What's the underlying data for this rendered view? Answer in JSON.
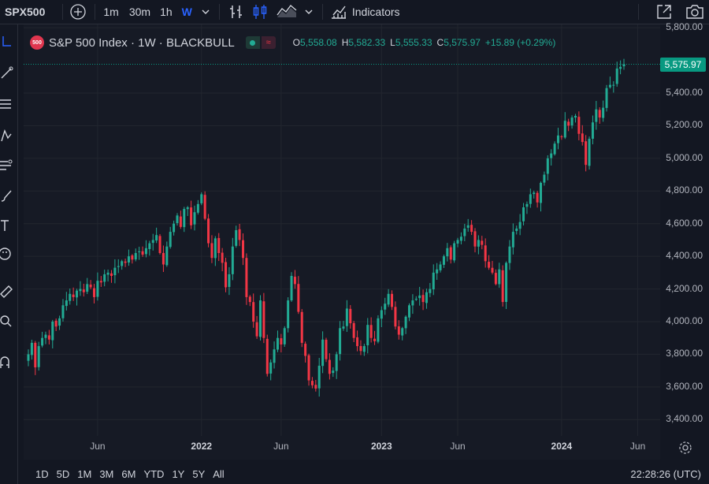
{
  "toolbar": {
    "symbol": "SPX500",
    "intervals": [
      "1m",
      "30m",
      "1h",
      "W"
    ],
    "active_interval": "W",
    "indicators_label": "Indicators"
  },
  "legend": {
    "badge": "500",
    "title": "S&P 500 Index · 1W · BLACKBULL",
    "open_key": "O",
    "open": "5,558.08",
    "high_key": "H",
    "high": "5,582.33",
    "low_key": "L",
    "low": "5,555.33",
    "close_key": "C",
    "close": "5,575.97",
    "change": "+15.89 (+0.29%)"
  },
  "colors": {
    "up": "#22ab94",
    "down": "#f23645",
    "accent": "#2962ff",
    "last_price_bg": "#089981"
  },
  "bottom": {
    "ranges": [
      "1D",
      "5D",
      "1M",
      "3M",
      "6M",
      "YTD",
      "1Y",
      "5Y",
      "All"
    ],
    "clock": "22:28:26 (UTC)"
  },
  "chart_data": {
    "type": "candlestick",
    "title": "S&P 500 Index · 1W · BLACKBULL",
    "ylim": [
      3300,
      5820
    ],
    "y_ticks": [
      3400,
      3600,
      3800,
      4000,
      4200,
      4400,
      4600,
      4800,
      5000,
      5200,
      5400,
      5800
    ],
    "y_tick_labels": [
      "3,400.00",
      "3,600.00",
      "3,800.00",
      "4,000.00",
      "4,200.00",
      "4,400.00",
      "4,600.00",
      "4,800.00",
      "5,000.00",
      "5,200.00",
      "5,400.00",
      "5,800.00"
    ],
    "last_price": 5575.97,
    "last_price_label": "5,575.97",
    "x_labels": [
      {
        "label": "Jun",
        "t": 20,
        "major": false
      },
      {
        "label": "2022",
        "t": 50,
        "major": true
      },
      {
        "label": "Jun",
        "t": 73,
        "major": false
      },
      {
        "label": "2023",
        "t": 102,
        "major": true
      },
      {
        "label": "Jun",
        "t": 124,
        "major": false
      },
      {
        "label": "2024",
        "t": 154,
        "major": true
      },
      {
        "label": "Jun",
        "t": 176,
        "major": false
      }
    ],
    "closes": [
      3800,
      3870,
      3720,
      3850,
      3900,
      3920,
      3890,
      4000,
      3970,
      4020,
      4100,
      4130,
      4170,
      4150,
      4190,
      4200,
      4180,
      4230,
      4210,
      4150,
      4250,
      4240,
      4290,
      4300,
      4280,
      4330,
      4340,
      4370,
      4360,
      4400,
      4380,
      4420,
      4430,
      4410,
      4450,
      4480,
      4500,
      4530,
      4420,
      4350,
      4460,
      4550,
      4600,
      4650,
      4580,
      4690,
      4700,
      4590,
      4670,
      4720,
      4780,
      4630,
      4480,
      4390,
      4510,
      4420,
      4360,
      4210,
      4290,
      4460,
      4560,
      4500,
      4390,
      4150,
      4120,
      4000,
      3910,
      4130,
      3900,
      3680,
      3750,
      3830,
      3900,
      3860,
      3960,
      4130,
      4280,
      4230,
      4060,
      3870,
      3790,
      3640,
      3610,
      3590,
      3730,
      3890,
      3770,
      3680,
      3700,
      3800,
      3960,
      3970,
      4080,
      3990,
      3900,
      3850,
      3820,
      3850,
      3980,
      3900,
      3880,
      4020,
      4070,
      4110,
      4170,
      4090,
      3970,
      3920,
      3960,
      4030,
      4100,
      4130,
      4140,
      4160,
      4120,
      4180,
      4200,
      4300,
      4320,
      4350,
      4400,
      4450,
      4380,
      4480,
      4500,
      4520,
      4570,
      4590,
      4550,
      4460,
      4500,
      4470,
      4370,
      4330,
      4300,
      4230,
      4320,
      4120,
      4360,
      4460,
      4550,
      4570,
      4610,
      4700,
      4720,
      4780,
      4790,
      4730,
      4850,
      4900,
      5000,
      5030,
      5090,
      5140,
      5130,
      5230,
      5200,
      5250,
      5260,
      5150,
      5100,
      4960,
      5120,
      5220,
      5300,
      5250,
      5310,
      5430,
      5450,
      5450,
      5550,
      5560,
      5575.97
    ]
  }
}
